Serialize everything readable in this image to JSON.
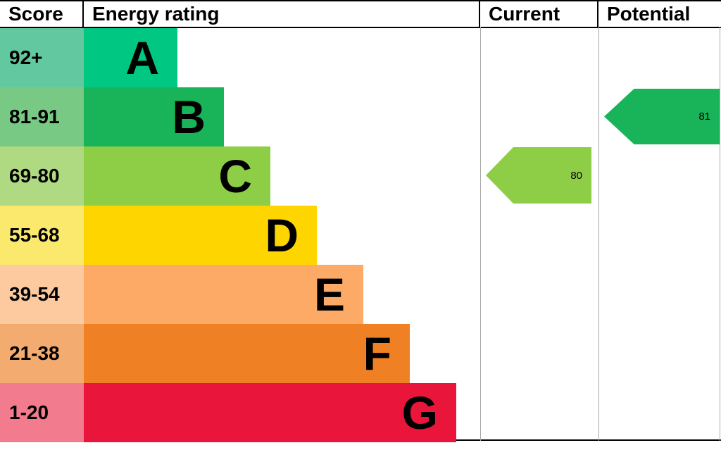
{
  "header": {
    "score": "Score",
    "energy_rating": "Energy rating",
    "current": "Current",
    "potential": "Potential"
  },
  "chart_data": {
    "type": "bar",
    "title": "Energy rating (EPC) chart",
    "bands": [
      {
        "score": "92+",
        "letter": "A",
        "bar_color": "#00c781",
        "score_color": "#62c8a0"
      },
      {
        "score": "81-91",
        "letter": "B",
        "bar_color": "#19b459",
        "score_color": "#78c983"
      },
      {
        "score": "69-80",
        "letter": "C",
        "bar_color": "#8dce46",
        "score_color": "#afda82"
      },
      {
        "score": "55-68",
        "letter": "D",
        "bar_color": "#ffd500",
        "score_color": "#fbe96e"
      },
      {
        "score": "39-54",
        "letter": "E",
        "bar_color": "#fcaa65",
        "score_color": "#fcca9e"
      },
      {
        "score": "21-38",
        "letter": "F",
        "bar_color": "#ef8023",
        "score_color": "#f4ab70"
      },
      {
        "score": "1-20",
        "letter": "G",
        "bar_color": "#e9153b",
        "score_color": "#f27b8e"
      }
    ],
    "current": {
      "value": "80",
      "band": "C",
      "color": "#8dce46"
    },
    "potential": {
      "value": "81",
      "band": "B",
      "color": "#19b459"
    }
  }
}
